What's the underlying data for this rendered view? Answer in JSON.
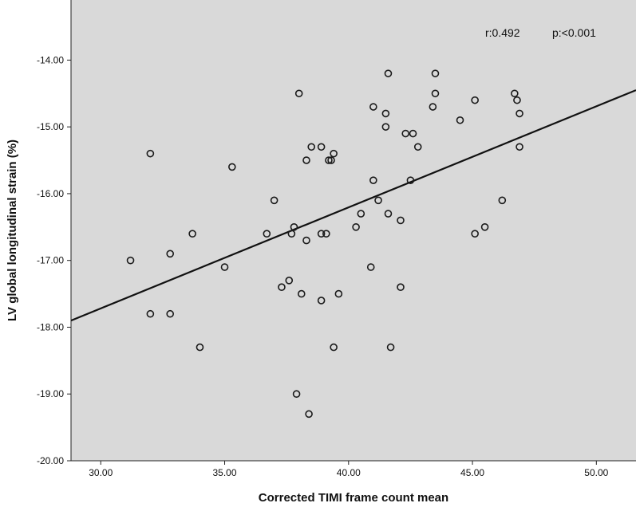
{
  "chart_data": {
    "type": "scatter",
    "title": "",
    "xlabel": "Corrected TIMI frame count mean",
    "ylabel": "LV global longitudinal strain (%)",
    "xlim": [
      28.8,
      51.6
    ],
    "ylim": [
      -20.0,
      -13.1
    ],
    "x_ticks": [
      30,
      35,
      40,
      45,
      50
    ],
    "x_tick_labels": [
      "30.00",
      "35.00",
      "40.00",
      "45.00",
      "50.00"
    ],
    "y_ticks": [
      -14,
      -15,
      -16,
      -17,
      -18,
      -19,
      -20
    ],
    "y_tick_labels": [
      "-14.00",
      "-15.00",
      "-16.00",
      "-17.00",
      "-18.00",
      "-19.00",
      "-20.00"
    ],
    "grid": false,
    "background": "#d9d9d9",
    "marker_color": "#1a1a1a",
    "annotations": {
      "r_text": "r:0.492",
      "p_text": "p:<0.001"
    },
    "fit_line": {
      "x": [
        28.8,
        51.6
      ],
      "y": [
        -17.9,
        -14.45
      ]
    },
    "points": [
      [
        31.2,
        -17.0
      ],
      [
        32.0,
        -15.4
      ],
      [
        32.0,
        -17.8
      ],
      [
        32.8,
        -16.9
      ],
      [
        32.8,
        -17.8
      ],
      [
        33.7,
        -16.6
      ],
      [
        34.0,
        -18.3
      ],
      [
        35.0,
        -17.1
      ],
      [
        35.3,
        -15.6
      ],
      [
        36.7,
        -16.6
      ],
      [
        37.0,
        -16.1
      ],
      [
        37.3,
        -17.4
      ],
      [
        37.6,
        -17.3
      ],
      [
        37.7,
        -16.6
      ],
      [
        37.8,
        -16.5
      ],
      [
        37.9,
        -19.0
      ],
      [
        38.0,
        -14.5
      ],
      [
        38.1,
        -17.5
      ],
      [
        38.3,
        -15.5
      ],
      [
        38.3,
        -16.7
      ],
      [
        38.4,
        -19.3
      ],
      [
        38.5,
        -15.3
      ],
      [
        38.9,
        -15.3
      ],
      [
        38.9,
        -16.6
      ],
      [
        38.9,
        -17.6
      ],
      [
        39.1,
        -16.6
      ],
      [
        39.2,
        -15.5
      ],
      [
        39.3,
        -15.5
      ],
      [
        39.4,
        -15.4
      ],
      [
        39.4,
        -18.3
      ],
      [
        39.6,
        -17.5
      ],
      [
        40.3,
        -16.5
      ],
      [
        40.5,
        -16.3
      ],
      [
        40.9,
        -17.1
      ],
      [
        41.0,
        -14.7
      ],
      [
        41.0,
        -15.8
      ],
      [
        41.2,
        -16.1
      ],
      [
        41.5,
        -15.0
      ],
      [
        41.5,
        -14.8
      ],
      [
        41.6,
        -14.2
      ],
      [
        41.6,
        -16.3
      ],
      [
        41.7,
        -18.3
      ],
      [
        42.1,
        -16.4
      ],
      [
        42.1,
        -17.4
      ],
      [
        42.3,
        -15.1
      ],
      [
        42.5,
        -15.8
      ],
      [
        42.6,
        -15.1
      ],
      [
        42.8,
        -15.3
      ],
      [
        43.4,
        -14.7
      ],
      [
        43.5,
        -14.2
      ],
      [
        43.5,
        -14.5
      ],
      [
        44.5,
        -14.9
      ],
      [
        45.1,
        -14.6
      ],
      [
        45.1,
        -16.6
      ],
      [
        45.5,
        -16.5
      ],
      [
        46.2,
        -16.1
      ],
      [
        46.7,
        -14.5
      ],
      [
        46.8,
        -14.6
      ],
      [
        46.9,
        -14.8
      ],
      [
        46.9,
        -15.3
      ]
    ]
  }
}
